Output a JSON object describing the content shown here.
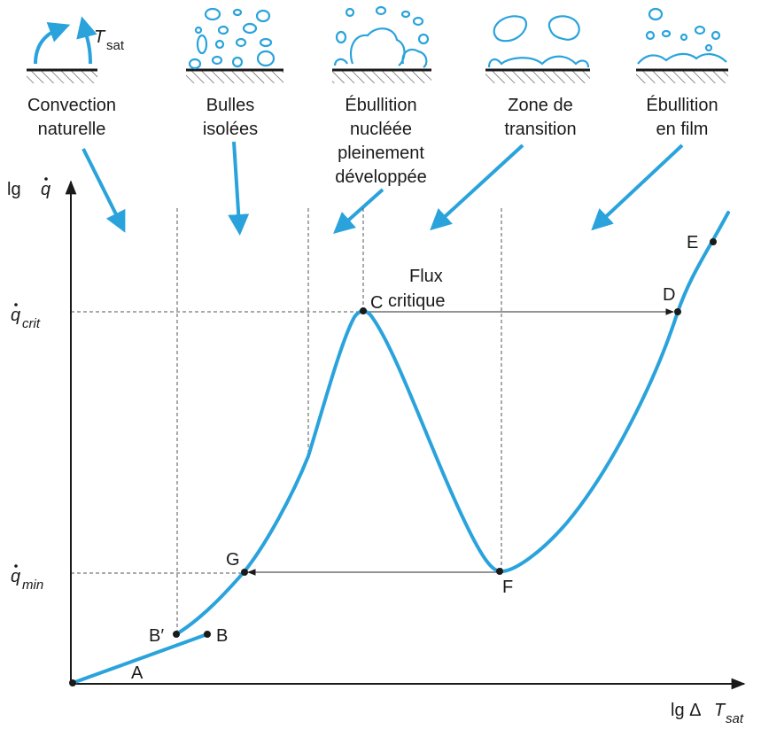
{
  "regimes": [
    {
      "lines": [
        "Convection",
        "naturelle"
      ]
    },
    {
      "lines": [
        "Bulles",
        "isolées"
      ]
    },
    {
      "lines": [
        "Ébullition",
        "nucléée",
        "pleinement",
        "développée"
      ]
    },
    {
      "lines": [
        "Zone de",
        "transition"
      ]
    },
    {
      "lines": [
        "Ébullition",
        "en film"
      ]
    }
  ],
  "tsat_label": {
    "main": "T",
    "sub": "sat"
  },
  "axes": {
    "y_label": {
      "prefix": "lg ",
      "symbol": "q"
    },
    "x_label": {
      "prefix": "lg Δ",
      "symbol": "T",
      "sub": "sat"
    }
  },
  "y_ticks": [
    {
      "symbol": "q",
      "sub": "crit"
    },
    {
      "symbol": "q",
      "sub": "min"
    }
  ],
  "points": {
    "A": "A",
    "B": "B",
    "B_prime": "B′",
    "C": "C",
    "D": "D",
    "E": "E",
    "F": "F",
    "G": "G"
  },
  "annotation": {
    "line1": "Flux",
    "line2": "critique"
  },
  "colors": {
    "curve": "#2aa3dc",
    "axis": "#1a1a1a",
    "guide": "#555555"
  }
}
